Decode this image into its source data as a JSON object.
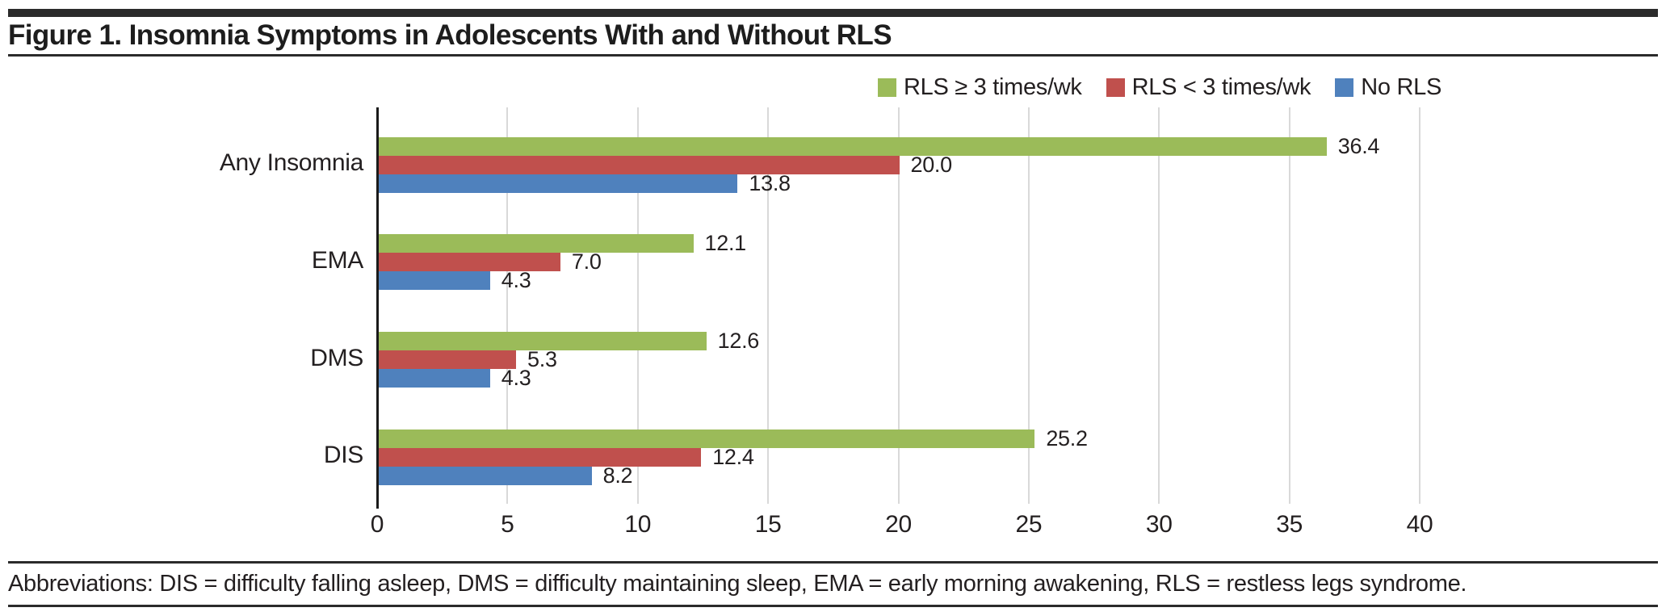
{
  "figure": {
    "title": "Figure 1. Insomnia Symptoms in Adolescents With and Without RLS",
    "footnote": "Abbreviations: DIS = difficulty falling asleep, DMS = difficulty maintaining sleep, EMA = early morning awakening, RLS = restless legs syndrome."
  },
  "colors": {
    "accent_bar": "#2b2b2b",
    "gridline": "#d9d9d9",
    "axis": "#1a1a1a",
    "text": "#231f20",
    "green": "#9bbb59",
    "red": "#c0504d",
    "blue": "#4f81bd"
  },
  "chart_data": {
    "type": "bar",
    "orientation": "horizontal",
    "title": "",
    "xlabel": "",
    "ylabel": "",
    "categories": [
      "Any Insomnia",
      "EMA",
      "DMS",
      "DIS"
    ],
    "series": [
      {
        "name": "RLS ≥ 3 times/wk",
        "color": "#9bbb59",
        "values": [
          36.4,
          12.1,
          12.6,
          25.2
        ],
        "labels": [
          "36.4",
          "12.1",
          "12.6",
          "25.2"
        ]
      },
      {
        "name": "RLS < 3 times/wk",
        "color": "#c0504d",
        "values": [
          20.0,
          7.0,
          5.3,
          12.4
        ],
        "labels": [
          "20.0",
          "7.0",
          "5.3",
          "12.4"
        ]
      },
      {
        "name": "No RLS",
        "color": "#4f81bd",
        "values": [
          13.8,
          4.3,
          4.3,
          8.2
        ],
        "labels": [
          "13.8",
          "4.3",
          "4.3",
          "8.2"
        ]
      }
    ],
    "xlim": [
      0,
      40
    ],
    "xticks": [
      0,
      5,
      10,
      15,
      20,
      25,
      30,
      35,
      40
    ],
    "grid": true,
    "legend_position": "top-right",
    "value_labels_shown": true
  }
}
